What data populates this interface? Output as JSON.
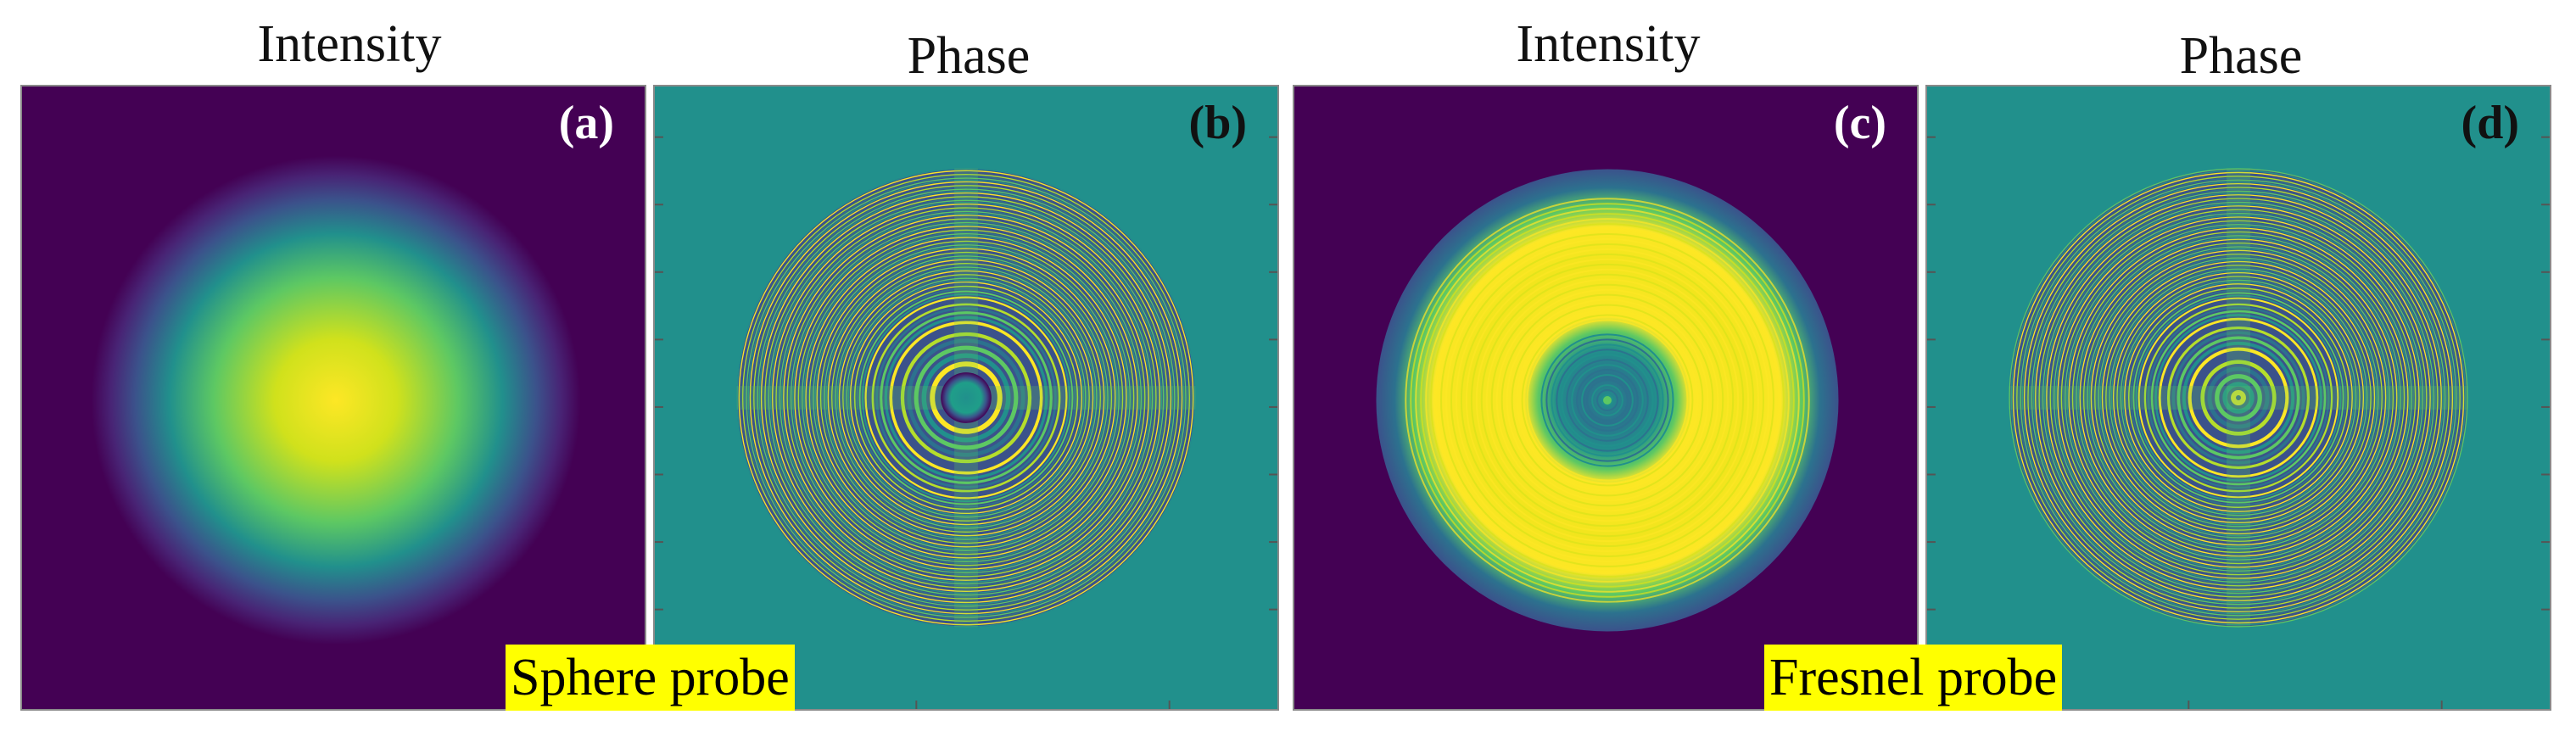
{
  "titles": {
    "a": "Intensity",
    "b": "Phase",
    "c": "Intensity",
    "d": "Phase"
  },
  "labels": {
    "a": "(a)",
    "b": "(b)",
    "c": "(c)",
    "d": "(d)"
  },
  "captions": {
    "sphere": "Sphere probe",
    "fresnel": "Fresnel probe"
  },
  "colors": {
    "background_dark": "#440154",
    "background_teal": "#21908C",
    "yellow": "#FDE725",
    "green": "#5DC863",
    "blue": "#3B528B",
    "label_light": "#ffffff",
    "label_dark": "#111111",
    "caption_bg": "#ffff00"
  }
}
